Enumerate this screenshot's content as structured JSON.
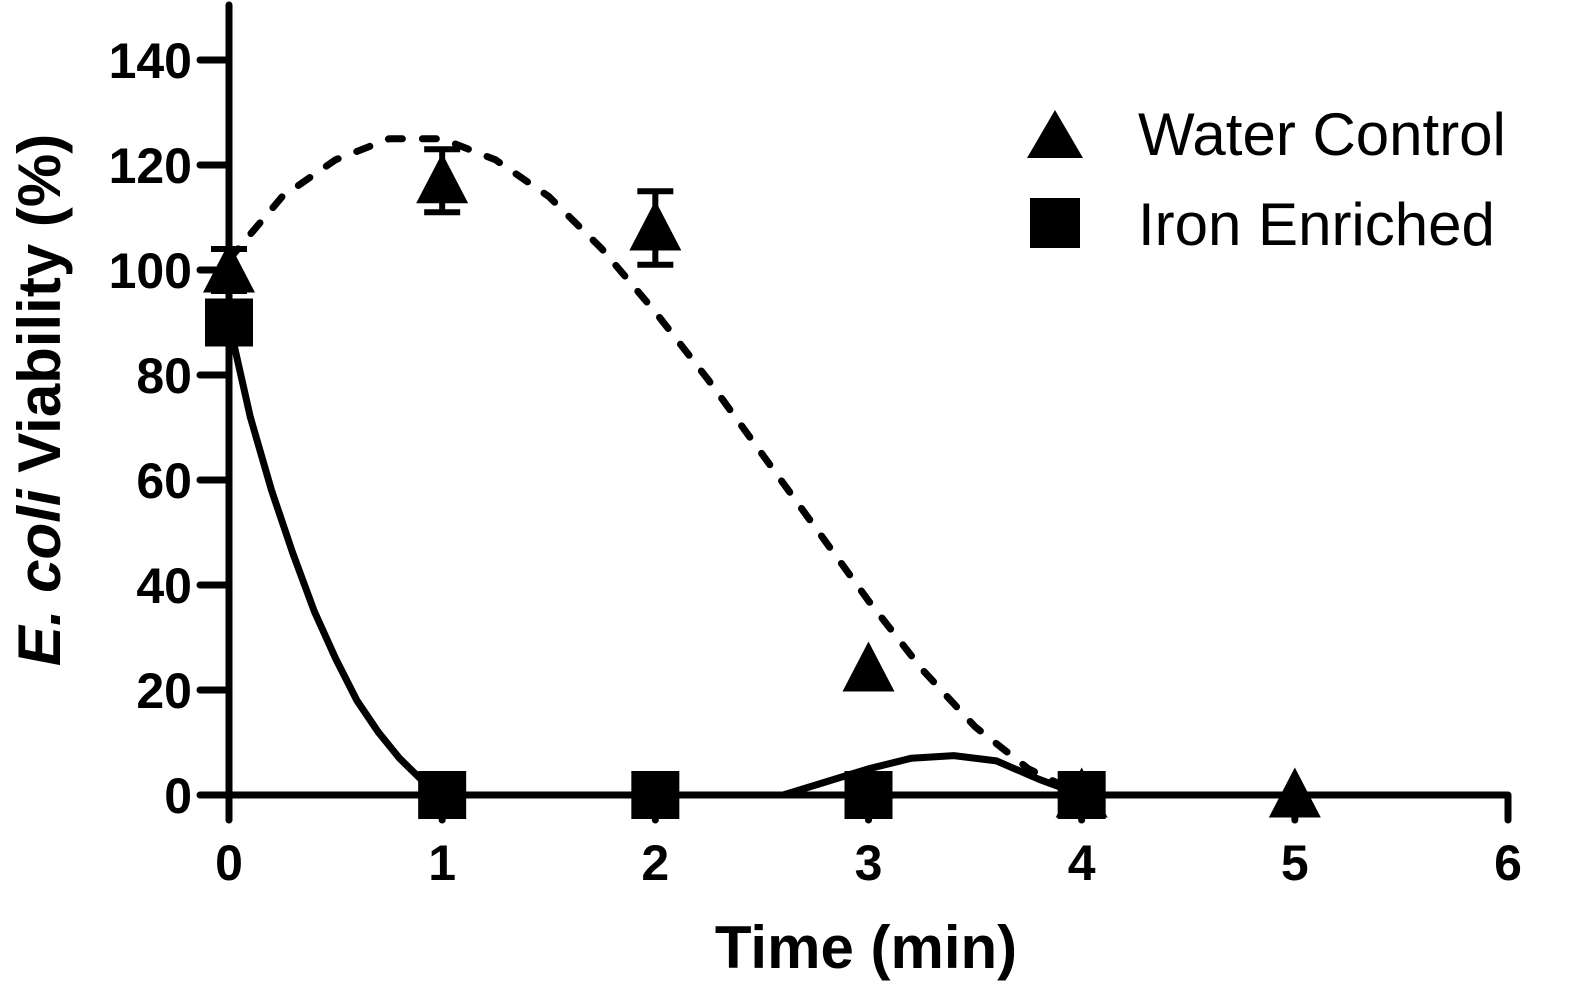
{
  "chart_data": {
    "type": "scatter",
    "xlabel": "Time (min)",
    "ylabel_italic": "E. coli",
    "ylabel_rest": " Viability (%)",
    "xlim": [
      0,
      6
    ],
    "ylim": [
      0,
      140
    ],
    "x_ticks": [
      "0",
      "1",
      "2",
      "3",
      "4",
      "5",
      "6"
    ],
    "y_ticks": [
      "0",
      "20",
      "40",
      "60",
      "80",
      "100",
      "120",
      "140"
    ],
    "grid": false,
    "legend_position": "top-right",
    "series": [
      {
        "name": "Water Control",
        "marker": "triangle",
        "fit_line": "dashed",
        "x": [
          0,
          1,
          2,
          3,
          4,
          5
        ],
        "y": [
          100,
          117,
          108,
          24,
          0,
          0
        ],
        "error": [
          4,
          6,
          7,
          0,
          0,
          0
        ],
        "fit_x": [
          0,
          0.25,
          0.5,
          0.75,
          1,
          1.25,
          1.5,
          1.75,
          2,
          2.25,
          2.5,
          2.75,
          3,
          3.25,
          3.5,
          3.75,
          4
        ],
        "fit_y": [
          102,
          114,
          121,
          125,
          125,
          121,
          114,
          104,
          92,
          79,
          65,
          51,
          37,
          24,
          13,
          5,
          0
        ]
      },
      {
        "name": "Iron Enriched",
        "marker": "square",
        "fit_line": "solid",
        "x": [
          0,
          1,
          2,
          3,
          4
        ],
        "y": [
          90,
          0,
          0,
          0,
          0
        ],
        "error": [
          0,
          0,
          0,
          0,
          0
        ],
        "fit_x": [
          0,
          0.1,
          0.2,
          0.3,
          0.4,
          0.5,
          0.6,
          0.7,
          0.8,
          0.9,
          1.0,
          1.1,
          1.2,
          2.6,
          2.8,
          3.0,
          3.2,
          3.4,
          3.6,
          3.8,
          4.0
        ],
        "fit_y": [
          90,
          72,
          58,
          46,
          35,
          26,
          18,
          12,
          7,
          3,
          1,
          0,
          0,
          0,
          2.5,
          5,
          7,
          7.5,
          6.5,
          3,
          0
        ]
      }
    ]
  }
}
